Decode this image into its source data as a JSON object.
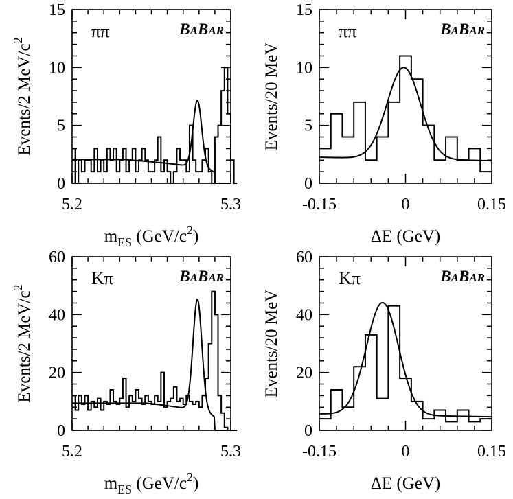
{
  "chart_data": [
    {
      "type": "histogram",
      "panel": "top-left",
      "label": "ππ",
      "watermark": {
        "b1": "B",
        "s1": "A",
        "b2": "B",
        "s2": "AR"
      },
      "xlabel": {
        "base": "m",
        "sub": "ES",
        "unit": " (GeV/c",
        "sup": "2",
        "close": ")"
      },
      "ylabel": {
        "text": "Events/2 MeV/c",
        "sup": "2"
      },
      "xlim": [
        5.2,
        5.3
      ],
      "ylim": [
        0,
        15
      ],
      "xticks": [
        "5.2",
        "5.3"
      ],
      "xtick_values": [
        5.2,
        5.3
      ],
      "yticks": [
        "0",
        "5",
        "10",
        "15"
      ],
      "ytick_values": [
        0,
        5,
        10,
        15
      ],
      "bin_width": 0.002,
      "counts": [
        3,
        0,
        2,
        1,
        2,
        2,
        1,
        3,
        1,
        2,
        1,
        3,
        2,
        3,
        1,
        2,
        3,
        1,
        2,
        3,
        1,
        2,
        3,
        2,
        1,
        1,
        2,
        4,
        1,
        2,
        1,
        0,
        1,
        3,
        2,
        2,
        1,
        5,
        2,
        1,
        1,
        2,
        3,
        1,
        0,
        4,
        5,
        8,
        10,
        6,
        2,
        0
      ],
      "fit": {
        "background": 1.85,
        "slope": -0.45,
        "peak": 5.8,
        "mean": 5.279,
        "sigma": 0.0027
      }
    },
    {
      "type": "histogram",
      "panel": "top-right",
      "label": "ππ",
      "watermark": {
        "b1": "B",
        "s1": "A",
        "b2": "B",
        "s2": "AR"
      },
      "xlabel": {
        "text": "ΔE (GeV)"
      },
      "ylabel": {
        "text": "Events/20 MeV"
      },
      "xlim": [
        -0.15,
        0.15
      ],
      "ylim": [
        0,
        15
      ],
      "xticks": [
        "-0.15",
        "0",
        "0.15"
      ],
      "xtick_values": [
        -0.15,
        0,
        0.15
      ],
      "yticks": [
        "0",
        "5",
        "10",
        "15"
      ],
      "ytick_values": [
        0,
        5,
        10,
        15
      ],
      "bin_width": 0.02,
      "counts": [
        3,
        6,
        4,
        7,
        2,
        4,
        7,
        11,
        9,
        5,
        2,
        4,
        2,
        3,
        1
      ],
      "fit": {
        "background": 2.1,
        "slope": -0.3,
        "peak": 7.9,
        "mean": -0.003,
        "sigma": 0.029
      }
    },
    {
      "type": "histogram",
      "panel": "bottom-left",
      "label": "Kπ",
      "watermark": {
        "b1": "B",
        "s1": "A",
        "b2": "B",
        "s2": "AR"
      },
      "xlabel": {
        "base": "m",
        "sub": "ES",
        "unit": " (GeV/c",
        "sup": "2",
        "close": ")"
      },
      "ylabel": {
        "text": "Events/2 MeV/c",
        "sup": "2"
      },
      "xlim": [
        5.2,
        5.3
      ],
      "ylim": [
        0,
        60
      ],
      "xticks": [
        "5.2",
        "5.3"
      ],
      "xtick_values": [
        5.2,
        5.3
      ],
      "yticks": [
        "0",
        "20",
        "40",
        "60"
      ],
      "ytick_values": [
        0,
        20,
        40,
        60
      ],
      "bin_width": 0.002,
      "counts": [
        12,
        7,
        12,
        9,
        12,
        7,
        10,
        8,
        11,
        7,
        10,
        9,
        14,
        10,
        9,
        11,
        18,
        8,
        12,
        10,
        14,
        11,
        9,
        12,
        10,
        9,
        12,
        10,
        20,
        8,
        10,
        11,
        15,
        10,
        11,
        9,
        12,
        10,
        9,
        10,
        8,
        12,
        18,
        30,
        48,
        40,
        12,
        6,
        1,
        0,
        0,
        0
      ],
      "fit": {
        "background": 9.2,
        "slope": -1.6,
        "peak": 38.5,
        "mean": 5.279,
        "sigma": 0.0028
      }
    },
    {
      "type": "histogram",
      "panel": "bottom-right",
      "label": "Kπ",
      "watermark": {
        "b1": "B",
        "s1": "A",
        "b2": "B",
        "s2": "AR"
      },
      "xlabel": {
        "text": "ΔE (GeV)"
      },
      "ylabel": {
        "text": "Events/20 MeV"
      },
      "xlim": [
        -0.15,
        0.15
      ],
      "ylim": [
        0,
        60
      ],
      "xticks": [
        "-0.15",
        "0",
        "0.15"
      ],
      "xtick_values": [
        -0.15,
        0,
        0.15
      ],
      "yticks": [
        "0",
        "20",
        "40",
        "60"
      ],
      "ytick_values": [
        0,
        20,
        40,
        60
      ],
      "bin_width": 0.02,
      "counts": [
        4,
        14,
        8,
        22,
        33,
        11,
        43,
        18,
        10,
        4,
        7,
        3,
        7,
        3,
        4
      ],
      "fit": {
        "background": 5.2,
        "slope": -1.0,
        "peak": 38.8,
        "mean": -0.04,
        "sigma": 0.028
      }
    }
  ]
}
